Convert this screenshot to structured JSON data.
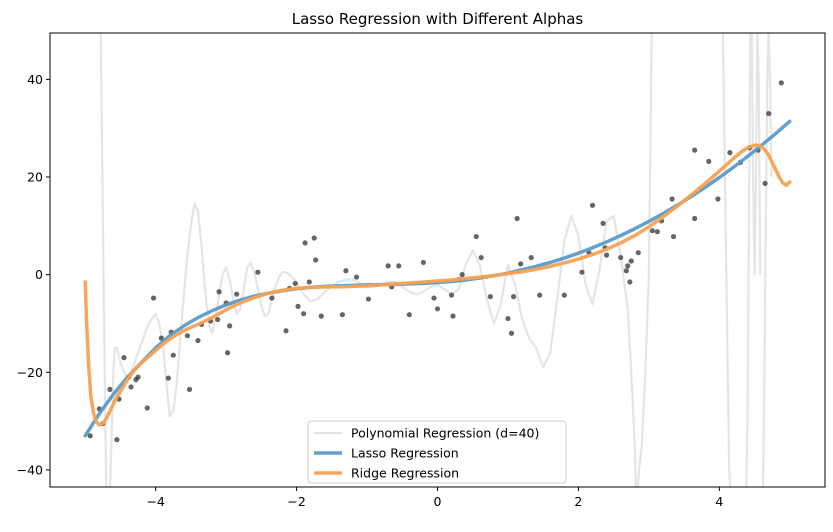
{
  "chart_data": {
    "type": "line",
    "title": "Lasso Regression with Different Alphas",
    "xlabel": "",
    "ylabel": "",
    "xlim": [
      -5.5,
      5.5
    ],
    "ylim": [
      -43.5,
      49.5
    ],
    "x_ticks": [
      {
        "value": -4,
        "label": "−4"
      },
      {
        "value": -2,
        "label": "−2"
      },
      {
        "value": 0,
        "label": "0"
      },
      {
        "value": 2,
        "label": "2"
      },
      {
        "value": 4,
        "label": "4"
      }
    ],
    "y_ticks": [
      {
        "value": -40,
        "label": "−40"
      },
      {
        "value": -20,
        "label": "−20"
      },
      {
        "value": 0,
        "label": "0"
      },
      {
        "value": 20,
        "label": "20"
      },
      {
        "value": 40,
        "label": "40"
      }
    ],
    "grid": false,
    "legend_position": "lower-center",
    "scatter": {
      "color": "#333333",
      "points": [
        [
          -4.93,
          -33.0
        ],
        [
          -4.8,
          -27.5
        ],
        [
          -4.75,
          -30.5
        ],
        [
          -4.65,
          -23.5
        ],
        [
          -4.55,
          -33.8
        ],
        [
          -4.52,
          -25.5
        ],
        [
          -4.45,
          -17.0
        ],
        [
          -4.38,
          -21.0
        ],
        [
          -4.35,
          -23.0
        ],
        [
          -4.28,
          -21.5
        ],
        [
          -4.25,
          -21.0
        ],
        [
          -4.12,
          -27.3
        ],
        [
          -4.03,
          -4.8
        ],
        [
          -3.92,
          -13.0
        ],
        [
          -3.82,
          -21.2
        ],
        [
          -3.78,
          -11.8
        ],
        [
          -3.75,
          -16.5
        ],
        [
          -3.55,
          -12.5
        ],
        [
          -3.52,
          -23.5
        ],
        [
          -3.4,
          -13.5
        ],
        [
          -3.35,
          -10.2
        ],
        [
          -3.22,
          -9.5
        ],
        [
          -3.12,
          -9.2
        ],
        [
          -3.1,
          -3.5
        ],
        [
          -3.0,
          -5.8
        ],
        [
          -2.98,
          -16.0
        ],
        [
          -2.95,
          -10.5
        ],
        [
          -2.85,
          -4.0
        ],
        [
          -2.55,
          0.5
        ],
        [
          -2.35,
          -4.8
        ],
        [
          -2.15,
          -11.5
        ],
        [
          -2.1,
          -2.8
        ],
        [
          -2.02,
          -1.8
        ],
        [
          -1.98,
          -6.5
        ],
        [
          -1.9,
          -8.0
        ],
        [
          -1.88,
          6.5
        ],
        [
          -1.82,
          -1.5
        ],
        [
          -1.75,
          7.5
        ],
        [
          -1.73,
          3.0
        ],
        [
          -1.65,
          -8.5
        ],
        [
          -1.35,
          -8.2
        ],
        [
          -1.3,
          0.8
        ],
        [
          -1.15,
          -0.5
        ],
        [
          -0.98,
          -5.0
        ],
        [
          -0.7,
          1.8
        ],
        [
          -0.65,
          -2.5
        ],
        [
          -0.55,
          1.8
        ],
        [
          -0.4,
          -8.2
        ],
        [
          -0.2,
          2.5
        ],
        [
          -0.05,
          -4.8
        ],
        [
          0.0,
          -7.0
        ],
        [
          0.2,
          -4.2
        ],
        [
          0.22,
          -8.5
        ],
        [
          0.3,
          -1.0
        ],
        [
          0.35,
          0.0
        ],
        [
          0.55,
          7.8
        ],
        [
          0.62,
          3.5
        ],
        [
          0.75,
          -4.5
        ],
        [
          1.0,
          -9.0
        ],
        [
          1.05,
          -12.0
        ],
        [
          1.08,
          -4.5
        ],
        [
          1.13,
          11.5
        ],
        [
          1.18,
          2.2
        ],
        [
          1.33,
          3.5
        ],
        [
          1.45,
          -4.2
        ],
        [
          1.8,
          -4.2
        ],
        [
          2.05,
          0.5
        ],
        [
          2.15,
          4.5
        ],
        [
          2.2,
          14.2
        ],
        [
          2.35,
          10.5
        ],
        [
          2.38,
          5.5
        ],
        [
          2.4,
          4.0
        ],
        [
          2.6,
          3.5
        ],
        [
          2.68,
          0.8
        ],
        [
          2.7,
          1.8
        ],
        [
          2.73,
          -1.5
        ],
        [
          2.75,
          2.8
        ],
        [
          2.85,
          4.5
        ],
        [
          3.05,
          9.0
        ],
        [
          3.12,
          8.8
        ],
        [
          3.18,
          11.0
        ],
        [
          3.33,
          15.5
        ],
        [
          3.35,
          7.8
        ],
        [
          3.65,
          11.5
        ],
        [
          3.65,
          25.5
        ],
        [
          3.85,
          23.2
        ],
        [
          3.98,
          15.5
        ],
        [
          4.15,
          25.0
        ],
        [
          4.3,
          23.0
        ],
        [
          4.43,
          26.0
        ],
        [
          4.55,
          25.5
        ],
        [
          4.65,
          18.7
        ],
        [
          4.7,
          33.0
        ],
        [
          4.88,
          39.3
        ]
      ]
    },
    "series": [
      {
        "name": "Polynomial Regression (d=40)",
        "color": "#e0e0e0",
        "x": [
          -4.78,
          -4.76,
          -4.74,
          -4.72,
          -4.7,
          -4.68,
          -4.65,
          -4.62,
          -4.6,
          -4.58,
          -4.55,
          -4.5,
          -4.45,
          -4.4,
          -4.35,
          -4.3,
          -4.25,
          -4.2,
          -4.15,
          -4.1,
          -4.05,
          -4.0,
          -3.95,
          -3.9,
          -3.85,
          -3.8,
          -3.75,
          -3.7,
          -3.65,
          -3.6,
          -3.55,
          -3.5,
          -3.45,
          -3.4,
          -3.35,
          -3.3,
          -3.25,
          -3.2,
          -3.15,
          -3.1,
          -3.05,
          -3.0,
          -2.95,
          -2.9,
          -2.85,
          -2.8,
          -2.75,
          -2.7,
          -2.65,
          -2.6,
          -2.55,
          -2.5,
          -2.45,
          -2.4,
          -2.35,
          -2.3,
          -2.25,
          -2.2,
          -2.15,
          -2.1,
          -2.0,
          -1.9,
          -1.8,
          -1.7,
          -1.6,
          -1.5,
          -1.4,
          -1.3,
          -1.2,
          -1.1,
          -1.0,
          -0.9,
          -0.8,
          -0.7,
          -0.6,
          -0.5,
          -0.4,
          -0.3,
          -0.2,
          -0.1,
          0.0,
          0.1,
          0.2,
          0.3,
          0.4,
          0.5,
          0.6,
          0.7,
          0.8,
          0.9,
          1.0,
          1.1,
          1.2,
          1.3,
          1.4,
          1.5,
          1.6,
          1.7,
          1.8,
          1.9,
          2.0,
          2.1,
          2.2,
          2.3,
          2.4,
          2.5,
          2.6,
          2.7,
          2.75,
          2.8,
          2.82,
          2.84,
          2.86,
          2.9,
          2.95,
          3.0,
          3.02,
          3.04
        ],
        "values": [
          50,
          25,
          0,
          -25,
          -45,
          -45,
          -45,
          -30,
          -20,
          -15,
          -15,
          -18,
          -20,
          -21,
          -20,
          -18,
          -16,
          -14,
          -12,
          -10,
          -9,
          -8,
          -10,
          -14,
          -22,
          -29,
          -28,
          -22,
          -13,
          -4,
          4,
          10,
          14.5,
          13,
          6,
          -3,
          -10,
          -12,
          -9,
          -4,
          0,
          1.5,
          -1,
          -5,
          -8,
          -7,
          -3,
          1.5,
          2.5,
          0.5,
          -3,
          -6.5,
          -8.5,
          -8,
          -5,
          -2.5,
          -0.5,
          0.5,
          0.5,
          0,
          -1.5,
          -4,
          -5.5,
          -5,
          -3.5,
          -2.5,
          -1.5,
          -1,
          -1,
          -1.8,
          -2.5,
          -2.5,
          -2,
          -1.5,
          -1.5,
          -2.5,
          -3.5,
          -4,
          -3.5,
          -2.5,
          -2,
          -3,
          -4,
          -3,
          2,
          5,
          2,
          -5,
          -10,
          -6,
          2,
          -2,
          -9,
          -13,
          -15,
          -19,
          -16,
          -5,
          7,
          12,
          8,
          -2,
          -6,
          1,
          11,
          12,
          4,
          -7,
          -20,
          -35,
          -45,
          -45,
          -40,
          -35,
          -20,
          0,
          25,
          50
        ]
      },
      {
        "name": "Polynomial Regression (d=40)",
        "color": "#e0e0e0",
        "x": [
          4.05,
          4.06,
          4.08,
          4.1,
          4.12,
          4.14,
          4.16
        ],
        "values": [
          50,
          40,
          20,
          0,
          -20,
          -40,
          -45
        ]
      },
      {
        "name": "Polynomial Regression (d=40)",
        "color": "#e0e0e0",
        "x": [
          4.38,
          4.4,
          4.42,
          4.44,
          4.46,
          4.48,
          4.5,
          4.52,
          4.54,
          4.56,
          4.58
        ],
        "values": [
          -45,
          -30,
          10,
          50,
          50,
          20,
          0,
          20,
          50,
          40,
          0
        ]
      },
      {
        "name": "Polynomial Regression (d=40)",
        "color": "#e0e0e0",
        "x": [
          4.62,
          4.64,
          4.66,
          4.68,
          4.7,
          4.72,
          4.74
        ],
        "values": [
          -45,
          -20,
          10,
          40,
          50,
          40,
          20
        ]
      },
      {
        "name": "Lasso Regression",
        "color": "#5b9bc9",
        "x": [
          -5.0,
          -4.8,
          -4.6,
          -4.4,
          -4.2,
          -4.0,
          -3.8,
          -3.6,
          -3.4,
          -3.2,
          -3.0,
          -2.8,
          -2.6,
          -2.4,
          -2.2,
          -2.0,
          -1.8,
          -1.6,
          -1.4,
          -1.2,
          -1.0,
          -0.8,
          -0.6,
          -0.4,
          -0.2,
          0.0,
          0.2,
          0.4,
          0.6,
          0.8,
          1.0,
          1.2,
          1.4,
          1.6,
          1.8,
          2.0,
          2.2,
          2.4,
          2.6,
          2.8,
          3.0,
          3.2,
          3.4,
          3.6,
          3.8,
          4.0,
          4.2,
          4.4,
          4.6,
          4.8,
          5.0
        ],
        "values": [
          -33,
          -28.5,
          -24.5,
          -21,
          -18,
          -15,
          -12.5,
          -10.5,
          -8.8,
          -7.4,
          -6.2,
          -5.2,
          -4.4,
          -3.8,
          -3.3,
          -2.9,
          -2.6,
          -2.4,
          -2.3,
          -2.2,
          -2.1,
          -2.05,
          -2.0,
          -1.9,
          -1.8,
          -1.6,
          -1.4,
          -1.1,
          -0.7,
          -0.2,
          0.3,
          1.0,
          1.7,
          2.5,
          3.4,
          4.4,
          5.5,
          6.7,
          8.0,
          9.4,
          10.9,
          12.5,
          14.2,
          16.0,
          17.9,
          19.9,
          22.0,
          24.2,
          26.5,
          28.9,
          31.4
        ]
      },
      {
        "name": "Ridge Regression",
        "color": "#f7a251",
        "x": [
          -5.0,
          -4.98,
          -4.95,
          -4.92,
          -4.88,
          -4.85,
          -4.8,
          -4.75,
          -4.7,
          -4.65,
          -4.6,
          -4.55,
          -4.5,
          -4.4,
          -4.3,
          -4.2,
          -4.1,
          -4.0,
          -3.9,
          -3.8,
          -3.7,
          -3.6,
          -3.5,
          -3.4,
          -3.3,
          -3.2,
          -3.1,
          -3.0,
          -2.8,
          -2.6,
          -2.4,
          -2.2,
          -2.0,
          -1.8,
          -1.6,
          -1.4,
          -1.2,
          -1.0,
          -0.8,
          -0.6,
          -0.4,
          -0.2,
          0.0,
          0.2,
          0.4,
          0.6,
          0.8,
          1.0,
          1.2,
          1.4,
          1.6,
          1.8,
          2.0,
          2.2,
          2.4,
          2.6,
          2.8,
          3.0,
          3.2,
          3.4,
          3.6,
          3.8,
          4.0,
          4.1,
          4.2,
          4.3,
          4.4,
          4.5,
          4.55,
          4.6,
          4.65,
          4.7,
          4.75,
          4.8,
          4.85,
          4.9,
          4.95,
          5.0
        ],
        "values": [
          -1.5,
          -10,
          -19,
          -25,
          -28.5,
          -30,
          -30.8,
          -30.5,
          -29.5,
          -28,
          -26.5,
          -25,
          -24,
          -21.5,
          -19.5,
          -18,
          -16.8,
          -15.5,
          -14.3,
          -13.2,
          -12.3,
          -11.5,
          -10.8,
          -10.2,
          -9.5,
          -8.8,
          -8,
          -7.2,
          -5.8,
          -4.7,
          -3.8,
          -3.2,
          -2.8,
          -2.6,
          -2.5,
          -2.5,
          -2.4,
          -2.3,
          -2.1,
          -1.9,
          -1.7,
          -1.5,
          -1.3,
          -1.1,
          -0.8,
          -0.5,
          -0.2,
          0.2,
          0.6,
          1.1,
          1.7,
          2.4,
          3.2,
          4.1,
          5.2,
          6.5,
          8,
          9.8,
          11.8,
          14,
          16.3,
          18.7,
          21.2,
          22.5,
          23.8,
          25,
          26,
          26.5,
          26.5,
          26.2,
          25.5,
          24.5,
          23,
          21.5,
          20,
          18.8,
          18.3,
          19
        ]
      }
    ],
    "legend": [
      {
        "label": "Polynomial Regression (d=40)",
        "color": "#e0e0e0"
      },
      {
        "label": "Lasso Regression",
        "color": "#5b9bc9"
      },
      {
        "label": "Ridge Regression",
        "color": "#f7a251"
      }
    ]
  }
}
